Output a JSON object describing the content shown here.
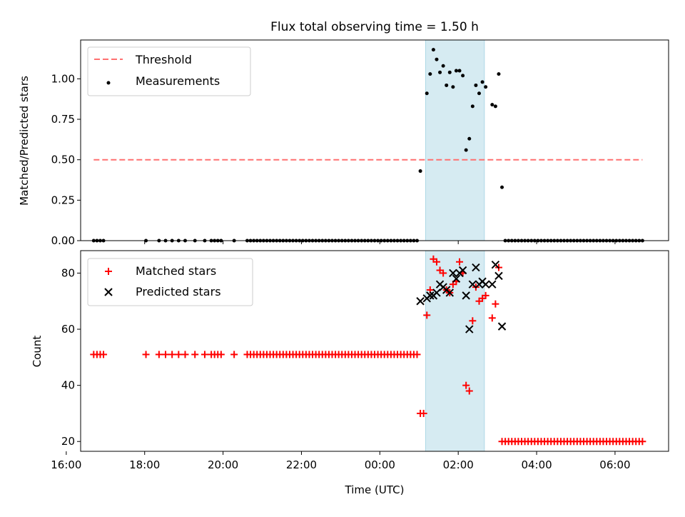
{
  "title": "Flux total observing time = 1.50 h",
  "chart_data": [
    {
      "panel": "top",
      "type": "scatter",
      "ylabel": "Matched/Predicted stars",
      "ylim": [
        0,
        1.24
      ],
      "xlim": [
        "16:22",
        "07:22"
      ],
      "yticks": [
        0.0,
        0.25,
        0.5,
        0.75,
        1.0
      ],
      "ytick_labels": [
        "0.00",
        "0.25",
        "0.50",
        "0.75",
        "1.00"
      ],
      "highlight_span": [
        "01:10",
        "02:40"
      ],
      "legend_position": "upper-left",
      "threshold": {
        "name": "Threshold",
        "y": 0.5,
        "x_range": [
          "16:42",
          "06:42"
        ],
        "color": "#ff7070"
      },
      "measurements": {
        "name": "Measurements",
        "color": "#000000",
        "points": [
          [
            "16:42",
            0
          ],
          [
            "16:47",
            0
          ],
          [
            "16:52",
            0
          ],
          [
            "16:57",
            0
          ],
          [
            "18:02",
            0
          ],
          [
            "18:22",
            0
          ],
          [
            "18:32",
            0
          ],
          [
            "18:42",
            0
          ],
          [
            "18:52",
            0
          ],
          [
            "19:02",
            0
          ],
          [
            "19:17",
            0
          ],
          [
            "19:32",
            0
          ],
          [
            "19:42",
            0
          ],
          [
            "19:47",
            0
          ],
          [
            "19:52",
            0
          ],
          [
            "19:57",
            0
          ],
          [
            "20:17",
            0
          ],
          [
            "20:37",
            0
          ],
          [
            "20:42",
            0
          ],
          [
            "20:47",
            0
          ],
          [
            "20:52",
            0
          ],
          [
            "20:57",
            0
          ],
          [
            "21:02",
            0
          ],
          [
            "21:07",
            0
          ],
          [
            "21:12",
            0
          ],
          [
            "21:17",
            0
          ],
          [
            "21:22",
            0
          ],
          [
            "21:27",
            0
          ],
          [
            "21:32",
            0
          ],
          [
            "21:37",
            0
          ],
          [
            "21:42",
            0
          ],
          [
            "21:47",
            0
          ],
          [
            "21:52",
            0
          ],
          [
            "21:57",
            0
          ],
          [
            "22:02",
            0
          ],
          [
            "22:07",
            0
          ],
          [
            "22:12",
            0
          ],
          [
            "22:17",
            0
          ],
          [
            "22:22",
            0
          ],
          [
            "22:27",
            0
          ],
          [
            "22:32",
            0
          ],
          [
            "22:37",
            0
          ],
          [
            "22:42",
            0
          ],
          [
            "22:47",
            0
          ],
          [
            "22:52",
            0
          ],
          [
            "22:57",
            0
          ],
          [
            "23:02",
            0
          ],
          [
            "23:07",
            0
          ],
          [
            "23:12",
            0
          ],
          [
            "23:17",
            0
          ],
          [
            "23:22",
            0
          ],
          [
            "23:27",
            0
          ],
          [
            "23:32",
            0
          ],
          [
            "23:37",
            0
          ],
          [
            "23:42",
            0
          ],
          [
            "23:47",
            0
          ],
          [
            "23:52",
            0
          ],
          [
            "23:57",
            0
          ],
          [
            "00:02",
            0
          ],
          [
            "00:07",
            0
          ],
          [
            "00:12",
            0
          ],
          [
            "00:17",
            0
          ],
          [
            "00:22",
            0
          ],
          [
            "00:27",
            0
          ],
          [
            "00:32",
            0
          ],
          [
            "00:37",
            0
          ],
          [
            "00:42",
            0
          ],
          [
            "00:47",
            0
          ],
          [
            "00:52",
            0
          ],
          [
            "00:57",
            0
          ],
          [
            "01:02",
            0.43
          ],
          [
            "01:12",
            0.91
          ],
          [
            "01:17",
            1.03
          ],
          [
            "01:22",
            1.18
          ],
          [
            "01:27",
            1.12
          ],
          [
            "01:32",
            1.04
          ],
          [
            "01:37",
            1.08
          ],
          [
            "01:42",
            0.96
          ],
          [
            "01:47",
            1.04
          ],
          [
            "01:52",
            0.95
          ],
          [
            "01:57",
            1.05
          ],
          [
            "02:02",
            1.05
          ],
          [
            "02:07",
            1.02
          ],
          [
            "02:12",
            0.56
          ],
          [
            "02:17",
            0.63
          ],
          [
            "02:22",
            0.83
          ],
          [
            "02:27",
            0.96
          ],
          [
            "02:32",
            0.91
          ],
          [
            "02:37",
            0.98
          ],
          [
            "02:42",
            0.95
          ],
          [
            "02:52",
            0.84
          ],
          [
            "02:57",
            0.83
          ],
          [
            "03:02",
            1.03
          ],
          [
            "03:07",
            0.33
          ],
          [
            "03:12",
            0
          ],
          [
            "03:17",
            0
          ],
          [
            "03:22",
            0
          ],
          [
            "03:27",
            0
          ],
          [
            "03:32",
            0
          ],
          [
            "03:37",
            0
          ],
          [
            "03:42",
            0
          ],
          [
            "03:47",
            0
          ],
          [
            "03:52",
            0
          ],
          [
            "03:57",
            0
          ],
          [
            "04:02",
            0
          ],
          [
            "04:07",
            0
          ],
          [
            "04:12",
            0
          ],
          [
            "04:17",
            0
          ],
          [
            "04:22",
            0
          ],
          [
            "04:27",
            0
          ],
          [
            "04:32",
            0
          ],
          [
            "04:37",
            0
          ],
          [
            "04:42",
            0
          ],
          [
            "04:47",
            0
          ],
          [
            "04:52",
            0
          ],
          [
            "04:57",
            0
          ],
          [
            "05:02",
            0
          ],
          [
            "05:07",
            0
          ],
          [
            "05:12",
            0
          ],
          [
            "05:17",
            0
          ],
          [
            "05:22",
            0
          ],
          [
            "05:27",
            0
          ],
          [
            "05:32",
            0
          ],
          [
            "05:37",
            0
          ],
          [
            "05:42",
            0
          ],
          [
            "05:47",
            0
          ],
          [
            "05:52",
            0
          ],
          [
            "05:57",
            0
          ],
          [
            "06:02",
            0
          ],
          [
            "06:07",
            0
          ],
          [
            "06:12",
            0
          ],
          [
            "06:17",
            0
          ],
          [
            "06:22",
            0
          ],
          [
            "06:27",
            0
          ],
          [
            "06:32",
            0
          ],
          [
            "06:37",
            0
          ],
          [
            "06:42",
            0
          ]
        ]
      }
    },
    {
      "panel": "bottom",
      "type": "scatter",
      "xlabel": "Time (UTC)",
      "ylabel": "Count",
      "ylim": [
        16.5,
        88
      ],
      "xlim": [
        "16:22",
        "07:22"
      ],
      "yticks": [
        20,
        40,
        60,
        80
      ],
      "ytick_labels": [
        "20",
        "40",
        "60",
        "80"
      ],
      "xticks": [
        "16:00",
        "18:00",
        "20:00",
        "22:00",
        "00:00",
        "02:00",
        "04:00",
        "06:00"
      ],
      "highlight_span": [
        "01:10",
        "02:40"
      ],
      "legend_position": "upper-left",
      "matched": {
        "name": "Matched stars",
        "color": "#ff0000",
        "points": [
          [
            "16:42",
            51
          ],
          [
            "16:47",
            51
          ],
          [
            "16:52",
            51
          ],
          [
            "16:57",
            51
          ],
          [
            "18:02",
            51
          ],
          [
            "18:22",
            51
          ],
          [
            "18:32",
            51
          ],
          [
            "18:42",
            51
          ],
          [
            "18:52",
            51
          ],
          [
            "19:02",
            51
          ],
          [
            "19:17",
            51
          ],
          [
            "19:32",
            51
          ],
          [
            "19:42",
            51
          ],
          [
            "19:47",
            51
          ],
          [
            "19:52",
            51
          ],
          [
            "19:57",
            51
          ],
          [
            "20:17",
            51
          ],
          [
            "20:37",
            51
          ],
          [
            "20:42",
            51
          ],
          [
            "20:47",
            51
          ],
          [
            "20:52",
            51
          ],
          [
            "20:57",
            51
          ],
          [
            "21:02",
            51
          ],
          [
            "21:07",
            51
          ],
          [
            "21:12",
            51
          ],
          [
            "21:17",
            51
          ],
          [
            "21:22",
            51
          ],
          [
            "21:27",
            51
          ],
          [
            "21:32",
            51
          ],
          [
            "21:37",
            51
          ],
          [
            "21:42",
            51
          ],
          [
            "21:47",
            51
          ],
          [
            "21:52",
            51
          ],
          [
            "21:57",
            51
          ],
          [
            "22:02",
            51
          ],
          [
            "22:07",
            51
          ],
          [
            "22:12",
            51
          ],
          [
            "22:17",
            51
          ],
          [
            "22:22",
            51
          ],
          [
            "22:27",
            51
          ],
          [
            "22:32",
            51
          ],
          [
            "22:37",
            51
          ],
          [
            "22:42",
            51
          ],
          [
            "22:47",
            51
          ],
          [
            "22:52",
            51
          ],
          [
            "22:57",
            51
          ],
          [
            "23:02",
            51
          ],
          [
            "23:07",
            51
          ],
          [
            "23:12",
            51
          ],
          [
            "23:17",
            51
          ],
          [
            "23:22",
            51
          ],
          [
            "23:27",
            51
          ],
          [
            "23:32",
            51
          ],
          [
            "23:37",
            51
          ],
          [
            "23:42",
            51
          ],
          [
            "23:47",
            51
          ],
          [
            "23:52",
            51
          ],
          [
            "23:57",
            51
          ],
          [
            "00:02",
            51
          ],
          [
            "00:07",
            51
          ],
          [
            "00:12",
            51
          ],
          [
            "00:17",
            51
          ],
          [
            "00:22",
            51
          ],
          [
            "00:27",
            51
          ],
          [
            "00:32",
            51
          ],
          [
            "00:37",
            51
          ],
          [
            "00:42",
            51
          ],
          [
            "00:47",
            51
          ],
          [
            "00:52",
            51
          ],
          [
            "00:57",
            51
          ],
          [
            "01:02",
            30
          ],
          [
            "01:07",
            30
          ],
          [
            "01:12",
            65
          ],
          [
            "01:17",
            74
          ],
          [
            "01:22",
            85
          ],
          [
            "01:27",
            84
          ],
          [
            "01:32",
            81
          ],
          [
            "01:37",
            80
          ],
          [
            "01:42",
            74
          ],
          [
            "01:47",
            73
          ],
          [
            "01:52",
            76
          ],
          [
            "01:57",
            77
          ],
          [
            "02:02",
            84
          ],
          [
            "02:07",
            80
          ],
          [
            "02:12",
            40
          ],
          [
            "02:17",
            38
          ],
          [
            "02:22",
            63
          ],
          [
            "02:27",
            75
          ],
          [
            "02:32",
            70
          ],
          [
            "02:37",
            71
          ],
          [
            "02:42",
            72
          ],
          [
            "02:52",
            64
          ],
          [
            "02:57",
            69
          ],
          [
            "03:02",
            82
          ],
          [
            "03:07",
            20
          ],
          [
            "03:12",
            20
          ],
          [
            "03:17",
            20
          ],
          [
            "03:22",
            20
          ],
          [
            "03:27",
            20
          ],
          [
            "03:32",
            20
          ],
          [
            "03:37",
            20
          ],
          [
            "03:42",
            20
          ],
          [
            "03:47",
            20
          ],
          [
            "03:52",
            20
          ],
          [
            "03:57",
            20
          ],
          [
            "04:02",
            20
          ],
          [
            "04:07",
            20
          ],
          [
            "04:12",
            20
          ],
          [
            "04:17",
            20
          ],
          [
            "04:22",
            20
          ],
          [
            "04:27",
            20
          ],
          [
            "04:32",
            20
          ],
          [
            "04:37",
            20
          ],
          [
            "04:42",
            20
          ],
          [
            "04:47",
            20
          ],
          [
            "04:52",
            20
          ],
          [
            "04:57",
            20
          ],
          [
            "05:02",
            20
          ],
          [
            "05:07",
            20
          ],
          [
            "05:12",
            20
          ],
          [
            "05:17",
            20
          ],
          [
            "05:22",
            20
          ],
          [
            "05:27",
            20
          ],
          [
            "05:32",
            20
          ],
          [
            "05:37",
            20
          ],
          [
            "05:42",
            20
          ],
          [
            "05:47",
            20
          ],
          [
            "05:52",
            20
          ],
          [
            "05:57",
            20
          ],
          [
            "06:02",
            20
          ],
          [
            "06:07",
            20
          ],
          [
            "06:12",
            20
          ],
          [
            "06:17",
            20
          ],
          [
            "06:22",
            20
          ],
          [
            "06:27",
            20
          ],
          [
            "06:32",
            20
          ],
          [
            "06:37",
            20
          ],
          [
            "06:42",
            20
          ]
        ]
      },
      "predicted": {
        "name": "Predicted stars",
        "color": "#000000",
        "points": [
          [
            "01:02",
            70
          ],
          [
            "01:12",
            71
          ],
          [
            "01:17",
            72
          ],
          [
            "01:22",
            72
          ],
          [
            "01:27",
            73
          ],
          [
            "01:32",
            76
          ],
          [
            "01:37",
            75
          ],
          [
            "01:42",
            74
          ],
          [
            "01:47",
            73
          ],
          [
            "01:52",
            80
          ],
          [
            "01:57",
            78
          ],
          [
            "02:02",
            80
          ],
          [
            "02:07",
            81
          ],
          [
            "02:12",
            72
          ],
          [
            "02:17",
            60
          ],
          [
            "02:22",
            76
          ],
          [
            "02:27",
            82
          ],
          [
            "02:32",
            76
          ],
          [
            "02:37",
            77
          ],
          [
            "02:42",
            76
          ],
          [
            "02:52",
            76
          ],
          [
            "02:57",
            83
          ],
          [
            "03:02",
            79
          ],
          [
            "03:07",
            61
          ]
        ]
      }
    }
  ]
}
